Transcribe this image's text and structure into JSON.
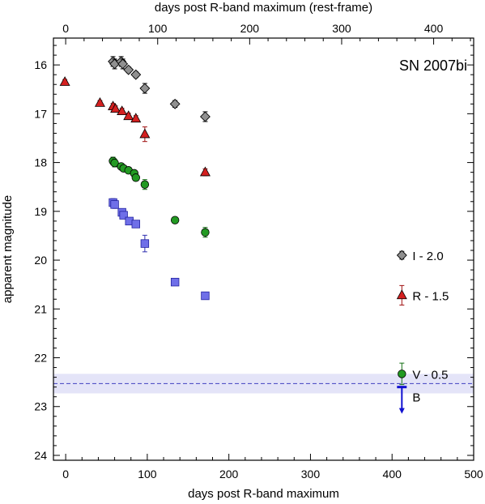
{
  "chart_data": {
    "type": "scatter",
    "title": "SN 2007bi",
    "xlabel": "days post R-band maximum",
    "x2label": "days post R-band maximum (rest-frame)",
    "ylabel": "apparent magnitude",
    "xlim": [
      -15,
      500
    ],
    "ylim": [
      24.1,
      15.45
    ],
    "y_inverted": true,
    "x_ticks": [
      0,
      100,
      200,
      300,
      400,
      500
    ],
    "x2_ticks": [
      0,
      100,
      200,
      300,
      400
    ],
    "x2_scale": 0.887,
    "y_ticks": [
      16,
      17,
      18,
      19,
      20,
      21,
      22,
      23,
      24
    ],
    "grid": false,
    "legend_position": "right",
    "series": [
      {
        "name": "I - 2.0",
        "marker": "diamond",
        "color": "#909090",
        "points": [
          {
            "x": 58,
            "y": 15.93,
            "err": 0.1
          },
          {
            "x": 60,
            "y": 15.98,
            "err": 0.1
          },
          {
            "x": 68,
            "y": 15.93,
            "err": 0.1
          },
          {
            "x": 70,
            "y": 15.98,
            "err": 0.1
          },
          {
            "x": 77,
            "y": 16.1,
            "err": 0.06
          },
          {
            "x": 86,
            "y": 16.2,
            "err": 0.06
          },
          {
            "x": 97,
            "y": 16.48,
            "err": 0.1
          },
          {
            "x": 134,
            "y": 16.8,
            "err": 0.07
          },
          {
            "x": 171,
            "y": 17.06,
            "err": 0.1
          }
        ]
      },
      {
        "name": "R - 1.5",
        "marker": "triangle",
        "color": "#d42020",
        "points": [
          {
            "x": -1,
            "y": 16.35,
            "err": 0.05
          },
          {
            "x": 42,
            "y": 16.78,
            "err": 0.05
          },
          {
            "x": 58,
            "y": 16.85,
            "err": 0.06
          },
          {
            "x": 61,
            "y": 16.9,
            "err": 0.06
          },
          {
            "x": 69,
            "y": 16.95,
            "err": 0.06
          },
          {
            "x": 77,
            "y": 17.05,
            "err": 0.06
          },
          {
            "x": 86,
            "y": 17.1,
            "err": 0.06
          },
          {
            "x": 97,
            "y": 17.42,
            "err": 0.15
          },
          {
            "x": 171,
            "y": 18.2,
            "err": 0.07
          }
        ]
      },
      {
        "name": "V - 0.5",
        "marker": "circle",
        "color": "#229a22",
        "points": [
          {
            "x": 58,
            "y": 17.97,
            "err": 0.08
          },
          {
            "x": 60,
            "y": 18.01,
            "err": 0.08
          },
          {
            "x": 68,
            "y": 18.08,
            "err": 0.06
          },
          {
            "x": 71,
            "y": 18.12,
            "err": 0.06
          },
          {
            "x": 77,
            "y": 18.16,
            "err": 0.06
          },
          {
            "x": 84,
            "y": 18.22,
            "err": 0.06
          },
          {
            "x": 86,
            "y": 18.31,
            "err": 0.06
          },
          {
            "x": 97,
            "y": 18.45,
            "err": 0.1
          },
          {
            "x": 134,
            "y": 19.18,
            "err": 0.04
          },
          {
            "x": 171,
            "y": 19.43,
            "err": 0.1
          }
        ]
      },
      {
        "name": "B",
        "marker": "square",
        "color": "#6f6fe8",
        "points": [
          {
            "x": 58,
            "y": 18.82,
            "err": 0.08
          },
          {
            "x": 60,
            "y": 18.86,
            "err": 0.08
          },
          {
            "x": 69,
            "y": 19.02,
            "err": 0.06
          },
          {
            "x": 71,
            "y": 19.08,
            "err": 0.06
          },
          {
            "x": 78,
            "y": 19.2,
            "err": 0.06
          },
          {
            "x": 86,
            "y": 19.26,
            "err": 0.06
          },
          {
            "x": 97,
            "y": 19.66,
            "err": 0.17
          },
          {
            "x": 134,
            "y": 20.45,
            "err": 0.06
          },
          {
            "x": 171,
            "y": 20.73,
            "err": 0.06
          }
        ]
      }
    ],
    "legend": [
      {
        "label": "I - 2.0",
        "marker": "diamond",
        "color": "#909090",
        "y": 19.9
      },
      {
        "label": "R - 1.5",
        "marker": "triangle",
        "color": "#d42020",
        "y": 20.72
      },
      {
        "label": "V - 0.5",
        "marker": "circle",
        "color": "#229a22",
        "y": 22.33
      },
      {
        "label": "B",
        "marker": "upper-limit-arrow",
        "color": "#1010d0",
        "y": 22.6
      }
    ],
    "limit_band": {
      "y_center": 22.53,
      "y_low": 22.33,
      "y_high": 22.73,
      "band_color": "#e4e4f8",
      "line_color": "#4040c0"
    }
  }
}
